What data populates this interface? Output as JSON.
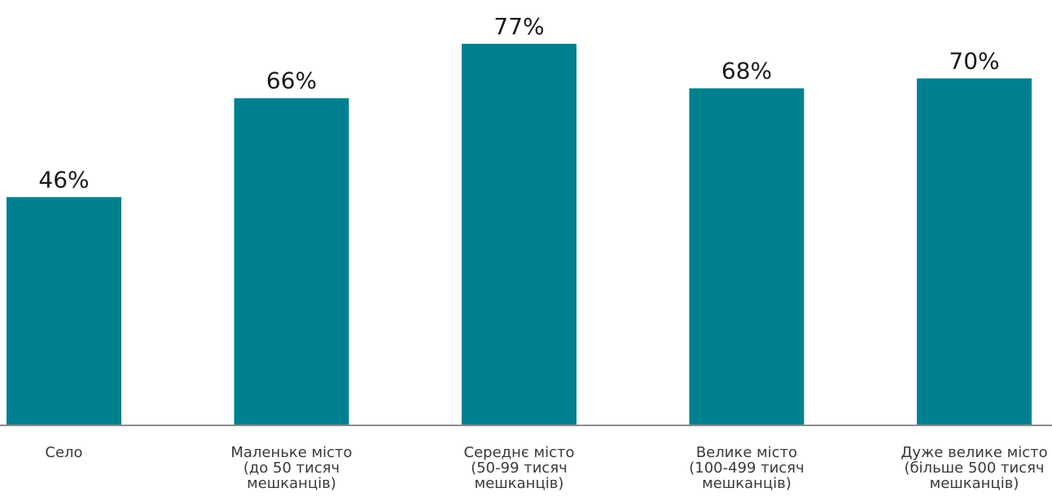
{
  "chart_data": {
    "type": "bar",
    "categories": [
      [
        "Село"
      ],
      [
        "Маленьке місто",
        "(до 50 тисяч",
        "мешканців)"
      ],
      [
        "Середнє місто",
        "(50-99 тисяч",
        "мешканців)"
      ],
      [
        "Велике місто",
        "(100-499 тисяч",
        "мешканців)"
      ],
      [
        "Дуже велике місто",
        "(більше 500 тисяч",
        "мешканців)"
      ]
    ],
    "values": [
      46,
      66,
      77,
      68,
      70
    ],
    "value_labels": [
      "46%",
      "66%",
      "77%",
      "68%",
      "70%"
    ],
    "title": "",
    "xlabel": "",
    "ylabel": "",
    "ylim": [
      0,
      80
    ],
    "grid": false,
    "bar_color": "#00808F",
    "axis_color": "#8c8c8c"
  }
}
